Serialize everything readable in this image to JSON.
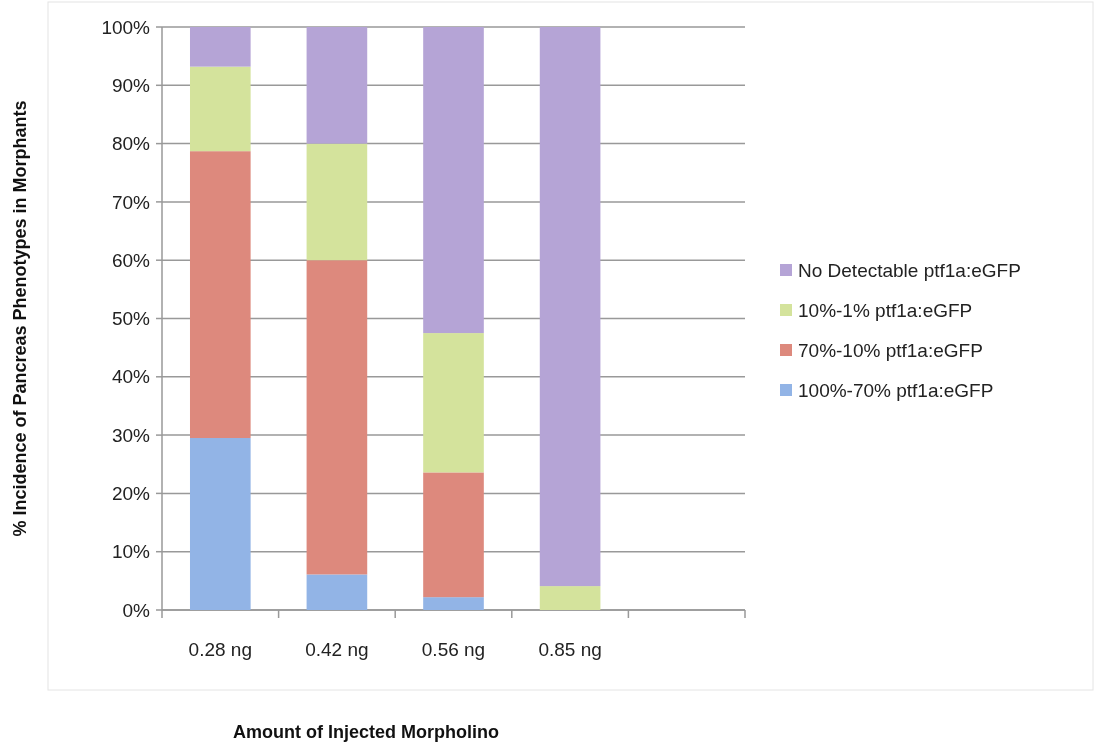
{
  "chart_data": {
    "type": "bar",
    "stacked": true,
    "xlabel": "Amount of Injected Morpholino",
    "ylabel": "% Incidence of Pancreas Phenotypes in Morphants",
    "categories": [
      "0.28 ng",
      "0.42 ng",
      "0.56 ng",
      "0.85 ng",
      null
    ],
    "series": [
      {
        "name": "100%-70% ptf1a:eGFP",
        "color": "#92b4e6",
        "values": [
          29.5,
          6.1,
          2.2,
          0,
          null
        ]
      },
      {
        "name": "70%-10% ptf1a:eGFP",
        "color": "#dd897d",
        "values": [
          49.2,
          53.9,
          21.4,
          0,
          null
        ]
      },
      {
        "name": "10%-1% ptf1a:eGFP",
        "color": "#d4e39c",
        "values": [
          14.5,
          20,
          23.9,
          4.1,
          null
        ]
      },
      {
        "name": "No Detectable ptf1a:eGFP",
        "color": "#b5a4d6",
        "values": [
          6.8,
          20,
          52.5,
          95.9,
          null
        ]
      }
    ],
    "ylim": [
      0,
      100
    ],
    "yticks": [
      {
        "value": 0,
        "label": "0%"
      },
      {
        "value": 10,
        "label": "10%"
      },
      {
        "value": 20,
        "label": "20%"
      },
      {
        "value": 30,
        "label": "30%"
      },
      {
        "value": 40,
        "label": "40%"
      },
      {
        "value": 50,
        "label": "50%"
      },
      {
        "value": 60,
        "label": "60%"
      },
      {
        "value": 70,
        "label": "70%"
      },
      {
        "value": 80,
        "label": "80%"
      },
      {
        "value": 90,
        "label": "90%"
      },
      {
        "value": 100,
        "label": "100%"
      }
    ],
    "grid": "y",
    "legend": "right"
  }
}
